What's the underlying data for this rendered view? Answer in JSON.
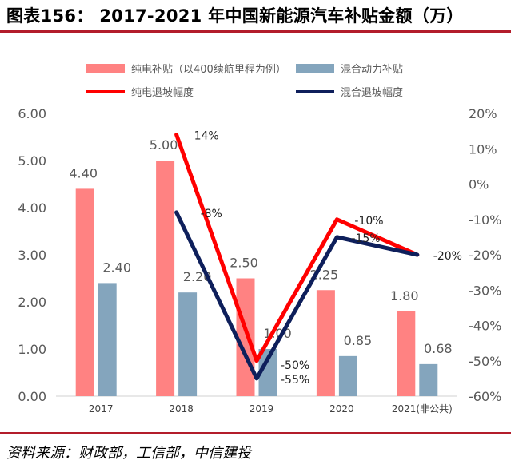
{
  "header": {
    "title": "图表156：  2017-2021 年中国新能源汽车补贴金额（万）"
  },
  "footer": {
    "source": "资料来源：财政部，工信部，中信建投"
  },
  "chart_data": {
    "type": "bar",
    "categories": [
      "2017",
      "2018",
      "2019",
      "2020",
      "2021(非公共)"
    ],
    "series": [
      {
        "name": "纯电补贴（以400续航里程为例）",
        "kind": "bar",
        "axis": "left",
        "color": "#ff8282",
        "values": [
          4.4,
          5.0,
          2.5,
          2.25,
          1.8
        ],
        "labels": [
          "4.40",
          "5.00",
          "2.50",
          "2.25",
          "1.80"
        ]
      },
      {
        "name": "混合动力补贴",
        "kind": "bar",
        "axis": "left",
        "color": "#84a5bd",
        "values": [
          2.4,
          2.2,
          1.0,
          0.85,
          0.68
        ],
        "labels": [
          "2.40",
          "2.20",
          "1.00",
          "0.85",
          "0.68"
        ]
      },
      {
        "name": "纯电退坡幅度",
        "kind": "line",
        "axis": "right",
        "color": "#ff0000",
        "values": [
          null,
          14,
          -50,
          -10,
          -20
        ],
        "labels": [
          "",
          "14%",
          "-50%",
          "-10%",
          "-20%"
        ]
      },
      {
        "name": "混合退坡幅度",
        "kind": "line",
        "axis": "right",
        "color": "#0e1f5b",
        "values": [
          null,
          -8,
          -55,
          -15,
          -20
        ],
        "labels": [
          "",
          "-8%",
          "-55%",
          "-15%",
          "-20%"
        ]
      }
    ],
    "y_left": {
      "min": 0,
      "max": 6,
      "ticks": [
        "0.00",
        "1.00",
        "2.00",
        "3.00",
        "4.00",
        "5.00",
        "6.00"
      ]
    },
    "y_right": {
      "min": -60,
      "max": 20,
      "ticks": [
        "-60%",
        "-50%",
        "-40%",
        "-30%",
        "-20%",
        "-10%",
        "0%",
        "10%",
        "20%"
      ]
    },
    "legend_position": "top",
    "grid": false
  }
}
